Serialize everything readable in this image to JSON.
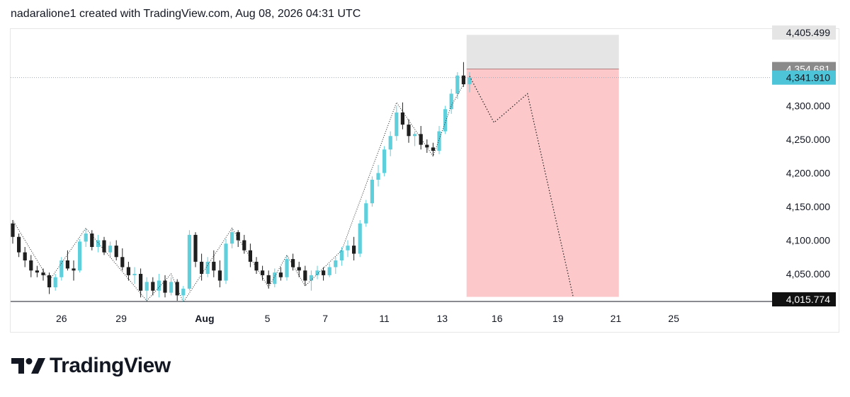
{
  "header": {
    "caption": "nadaralione1 created with TradingView.com, Aug 08, 2026 04:31 UTC"
  },
  "brand": {
    "name": "TradingView",
    "logo_icon": "tradingview-logo-icon"
  },
  "colors": {
    "up": "#5fcfdc",
    "down": "#1f1f1f",
    "zone": "#fcc8ca",
    "zone_top": "#e5e5e5",
    "current_price": "#4dc4d7",
    "target_price": "#111111",
    "entry_price": "#8a8a8a"
  },
  "chart_data": {
    "type": "candlestick",
    "ylim": [
      4010,
      4410
    ],
    "y_ticks": [
      {
        "label": "4,050.000",
        "value": 4050
      },
      {
        "label": "4,100.000",
        "value": 4100
      },
      {
        "label": "4,150.000",
        "value": 4150
      },
      {
        "label": "4,200.000",
        "value": 4200
      },
      {
        "label": "4,250.000",
        "value": 4250
      },
      {
        "label": "4,300.000",
        "value": 4300
      }
    ],
    "x_ticks": [
      {
        "label": "26",
        "index": 8.0
      },
      {
        "label": "29",
        "index": 17.8
      },
      {
        "label": "Aug",
        "index": 31.5
      },
      {
        "label": "5",
        "index": 41.8
      },
      {
        "label": "7",
        "index": 51.3
      },
      {
        "label": "11",
        "index": 61.0
      },
      {
        "label": "13",
        "index": 70.5
      },
      {
        "label": "16",
        "index": 79.5
      },
      {
        "label": "19",
        "index": 89.5
      },
      {
        "label": "21",
        "index": 99.0
      },
      {
        "label": "25",
        "index": 108.5
      }
    ],
    "x_range": [
      0,
      125
    ],
    "price_labels": [
      {
        "label": "4,405.499",
        "value": 4405.499,
        "kind": "zone_top"
      },
      {
        "label": "4,354.681",
        "value": 4354.681,
        "kind": "entry"
      },
      {
        "label": "4,341.910",
        "value": 4341.91,
        "kind": "current"
      },
      {
        "label": "4,015.774",
        "value": 4015.774,
        "kind": "target"
      }
    ],
    "candles": [
      [
        4125,
        4130,
        4095,
        4105
      ],
      [
        4105,
        4110,
        4075,
        4082
      ],
      [
        4082,
        4090,
        4060,
        4070
      ],
      [
        4070,
        4078,
        4045,
        4055
      ],
      [
        4055,
        4062,
        4045,
        4052
      ],
      [
        4052,
        4058,
        4040,
        4048
      ],
      [
        4048,
        4052,
        4020,
        4030
      ],
      [
        4030,
        4050,
        4025,
        4045
      ],
      [
        4045,
        4075,
        4040,
        4070
      ],
      [
        4070,
        4085,
        4055,
        4058
      ],
      [
        4058,
        4070,
        4040,
        4055
      ],
      [
        4055,
        4102,
        4052,
        4098
      ],
      [
        4098,
        4118,
        4090,
        4110
      ],
      [
        4110,
        4115,
        4085,
        4090
      ],
      [
        4090,
        4108,
        4082,
        4100
      ],
      [
        4100,
        4105,
        4078,
        4082
      ],
      [
        4082,
        4098,
        4075,
        4092
      ],
      [
        4092,
        4100,
        4070,
        4075
      ],
      [
        4075,
        4088,
        4055,
        4060
      ],
      [
        4060,
        4068,
        4040,
        4048
      ],
      [
        4048,
        4060,
        4035,
        4050
      ],
      [
        4050,
        4058,
        4015,
        4025
      ],
      [
        4025,
        4045,
        4010,
        4038
      ],
      [
        4038,
        4045,
        4018,
        4025
      ],
      [
        4025,
        4050,
        4015,
        4040
      ],
      [
        4040,
        4048,
        4015,
        4022
      ],
      [
        4022,
        4045,
        4018,
        4038
      ],
      [
        4038,
        4042,
        4010,
        4018
      ],
      [
        4018,
        4032,
        4008,
        4028
      ],
      [
        4028,
        4115,
        4025,
        4108
      ],
      [
        4108,
        4112,
        4060,
        4068
      ],
      [
        4068,
        4080,
        4040,
        4050
      ],
      [
        4050,
        4075,
        4045,
        4068
      ],
      [
        4068,
        4085,
        4045,
        4055
      ],
      [
        4055,
        4070,
        4030,
        4040
      ],
      [
        4040,
        4102,
        4035,
        4095
      ],
      [
        4095,
        4118,
        4088,
        4112
      ],
      [
        4112,
        4115,
        4090,
        4100
      ],
      [
        4100,
        4108,
        4080,
        4085
      ],
      [
        4085,
        4095,
        4060,
        4068
      ],
      [
        4068,
        4075,
        4050,
        4055
      ],
      [
        4055,
        4062,
        4040,
        4048
      ],
      [
        4048,
        4055,
        4028,
        4035
      ],
      [
        4035,
        4058,
        4030,
        4052
      ],
      [
        4052,
        4060,
        4040,
        4045
      ],
      [
        4045,
        4078,
        4040,
        4072
      ],
      [
        4072,
        4080,
        4055,
        4060
      ],
      [
        4060,
        4068,
        4045,
        4055
      ],
      [
        4055,
        4062,
        4032,
        4040
      ],
      [
        4040,
        4055,
        4025,
        4048
      ],
      [
        4048,
        4062,
        4042,
        4055
      ],
      [
        4055,
        4060,
        4040,
        4048
      ],
      [
        4048,
        4065,
        4045,
        4060
      ],
      [
        4060,
        4075,
        4050,
        4070
      ],
      [
        4070,
        4090,
        4062,
        4085
      ],
      [
        4085,
        4100,
        4075,
        4092
      ],
      [
        4092,
        4105,
        4070,
        4080
      ],
      [
        4080,
        4130,
        4075,
        4125
      ],
      [
        4125,
        4160,
        4120,
        4155
      ],
      [
        4155,
        4195,
        4150,
        4190
      ],
      [
        4190,
        4212,
        4180,
        4200
      ],
      [
        4200,
        4240,
        4195,
        4235
      ],
      [
        4235,
        4262,
        4225,
        4255
      ],
      [
        4255,
        4300,
        4248,
        4290
      ],
      [
        4290,
        4305,
        4265,
        4272
      ],
      [
        4272,
        4280,
        4245,
        4255
      ],
      [
        4255,
        4262,
        4240,
        4258
      ],
      [
        4258,
        4270,
        4235,
        4242
      ],
      [
        4242,
        4250,
        4230,
        4238
      ],
      [
        4238,
        4245,
        4225,
        4233
      ],
      [
        4233,
        4270,
        4228,
        4262
      ],
      [
        4262,
        4300,
        4258,
        4295
      ],
      [
        4295,
        4325,
        4288,
        4318
      ],
      [
        4318,
        4350,
        4310,
        4345
      ],
      [
        4345,
        4365,
        4328,
        4332
      ],
      [
        4332,
        4350,
        4320,
        4341.91
      ]
    ],
    "projection": [
      {
        "index": 75.0,
        "value": 4344
      },
      {
        "index": 79.0,
        "value": 4275
      },
      {
        "index": 84.5,
        "value": 4318
      },
      {
        "index": 92.0,
        "value": 4015.774
      }
    ],
    "zone": {
      "start_index": 74.5,
      "end_index": 99.5,
      "top": 4405.499,
      "entry": 4354.681,
      "bottom": 4015.774
    }
  }
}
